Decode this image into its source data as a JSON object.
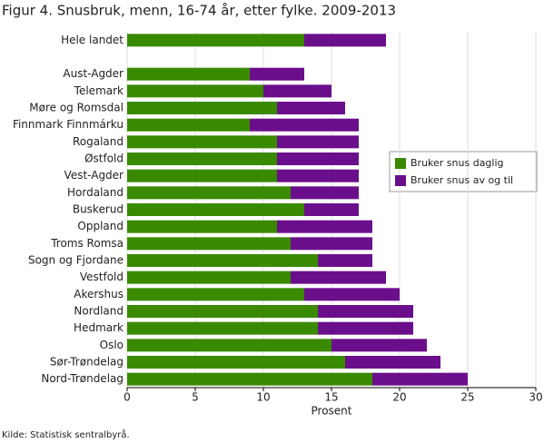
{
  "chart_data": {
    "type": "stacked-barh",
    "title": "Figur 4. Snusbruk, menn, 16-74 år, etter fylke. 2009-2013",
    "x_label": "Prosent",
    "source": "Kilde: Statistisk sentralbyrå.",
    "categories": [
      "Hele landet",
      null,
      "Aust-Agder",
      "Telemark",
      "Møre og Romsdal",
      "Finnmark Finnmárku",
      "Rogaland",
      "Østfold",
      "Vest-Agder",
      "Hordaland",
      "Buskerud",
      "Oppland",
      "Troms Romsa",
      "Sogn og Fjordane",
      "Vestfold",
      "Akershus",
      "Nordland",
      "Hedmark",
      "Oslo",
      "Sør-Trøndelag",
      "Nord-Trøndelag"
    ],
    "series": [
      {
        "name": "Bruker snus daglig",
        "color": "#3a8a00",
        "values": [
          13,
          null,
          9,
          10,
          11,
          9,
          11,
          11,
          11,
          12,
          13,
          11,
          12,
          14,
          12,
          13,
          14,
          14,
          15,
          16,
          18
        ]
      },
      {
        "name": "Bruker snus av og til",
        "color": "#6b0e8c",
        "values": [
          6,
          null,
          4,
          5,
          5,
          8,
          6,
          6,
          6,
          5,
          4,
          7,
          6,
          4,
          7,
          7,
          7,
          7,
          7,
          7,
          7
        ]
      }
    ],
    "xlim": [
      0,
      30
    ],
    "xticks": [
      0,
      5,
      10,
      15,
      20,
      25,
      30
    ],
    "grid": true,
    "legend": "right"
  }
}
